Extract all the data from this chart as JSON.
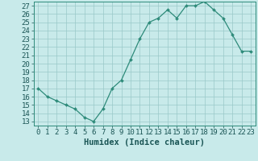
{
  "x": [
    0,
    1,
    2,
    3,
    4,
    5,
    6,
    7,
    8,
    9,
    10,
    11,
    12,
    13,
    14,
    15,
    16,
    17,
    18,
    19,
    20,
    21,
    22,
    23
  ],
  "y": [
    17,
    16,
    15.5,
    15,
    14.5,
    13.5,
    13,
    14.5,
    17,
    18,
    20.5,
    23,
    25,
    25.5,
    26.5,
    25.5,
    27,
    27,
    27.5,
    26.5,
    25.5,
    23.5,
    21.5,
    21.5
  ],
  "line_color": "#2e8b7a",
  "marker_color": "#2e8b7a",
  "bg_color": "#c8eaea",
  "grid_color": "#9ac8c8",
  "xlabel": "Humidex (Indice chaleur)",
  "xlim": [
    -0.5,
    23.5
  ],
  "ylim": [
    12.5,
    27.5
  ],
  "yticks": [
    13,
    14,
    15,
    16,
    17,
    18,
    19,
    20,
    21,
    22,
    23,
    24,
    25,
    26,
    27
  ],
  "xticks": [
    0,
    1,
    2,
    3,
    4,
    5,
    6,
    7,
    8,
    9,
    10,
    11,
    12,
    13,
    14,
    15,
    16,
    17,
    18,
    19,
    20,
    21,
    22,
    23
  ],
  "tick_font_size": 6.5,
  "label_font_size": 7.5
}
